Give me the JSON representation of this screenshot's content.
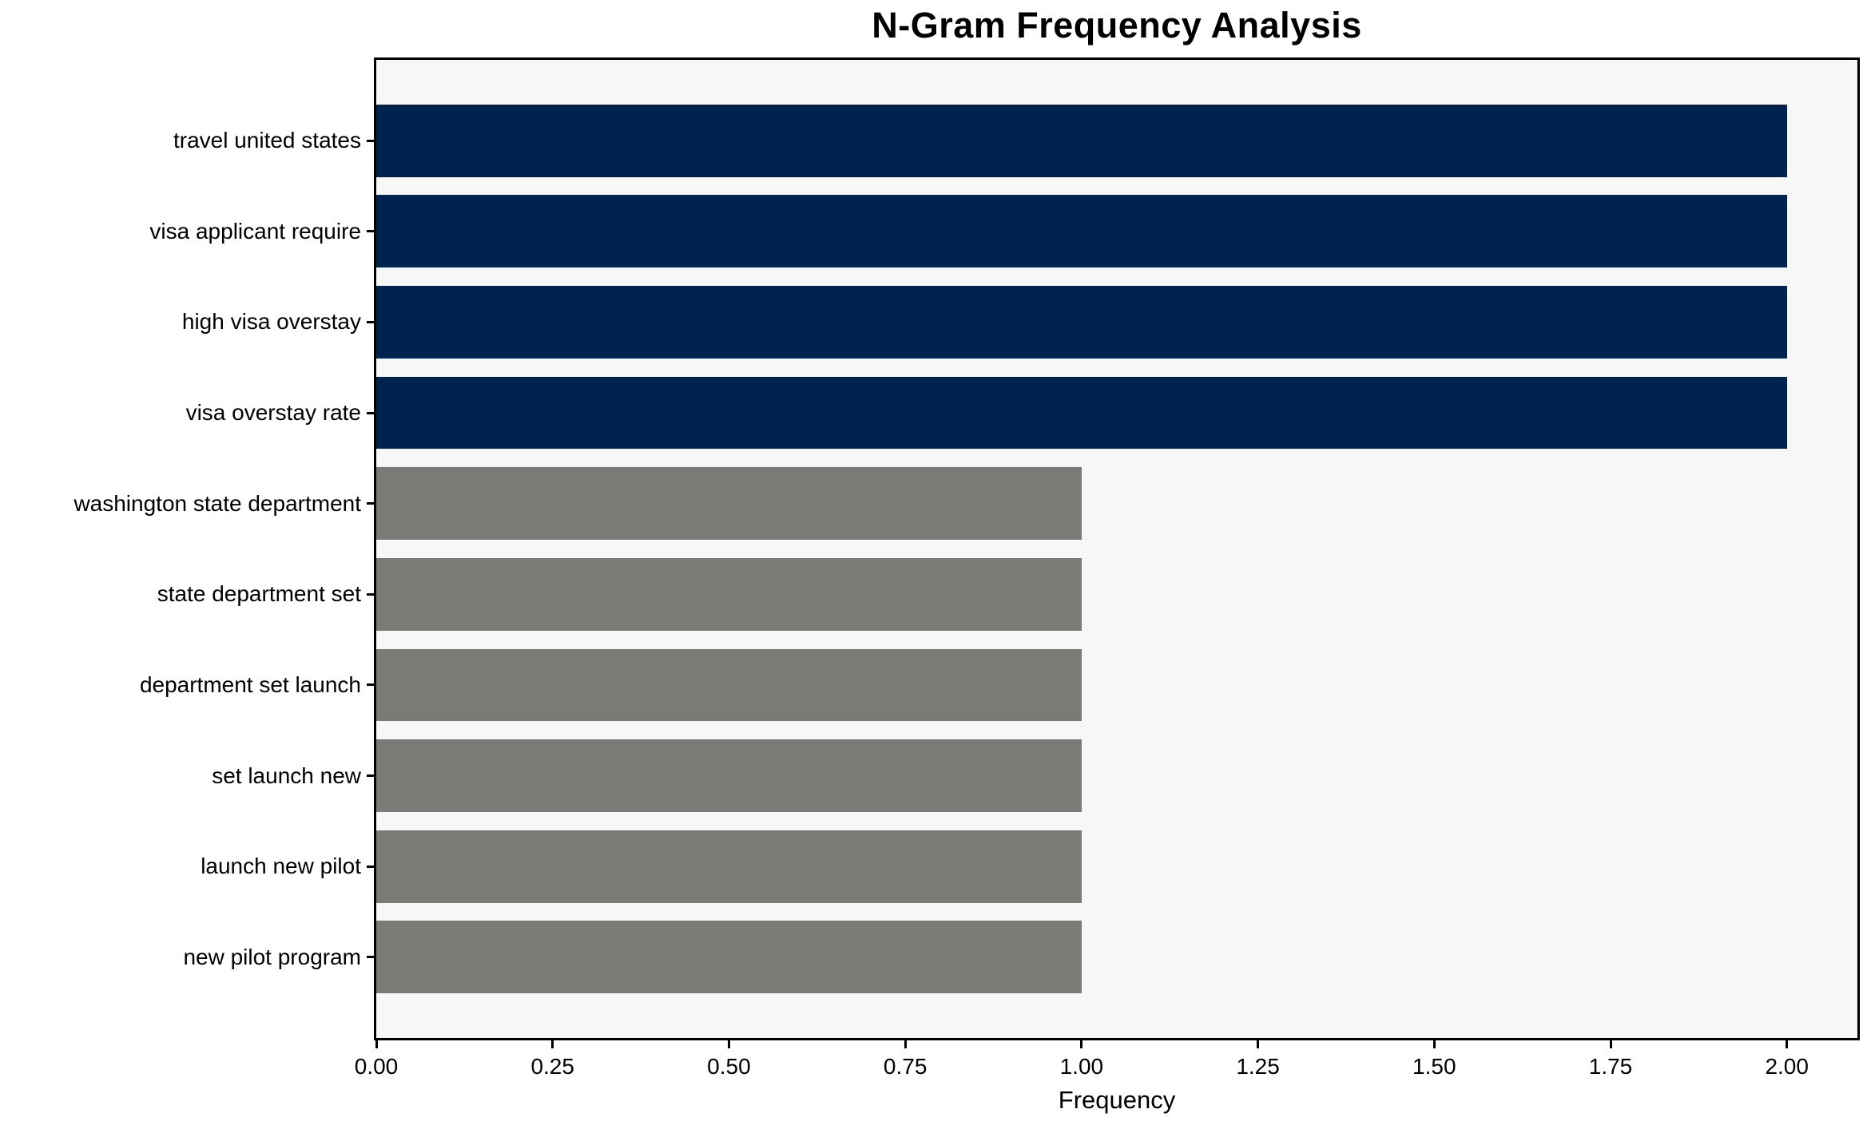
{
  "chart_data": {
    "type": "bar",
    "orientation": "horizontal",
    "title": "N-Gram Frequency Analysis",
    "xlabel": "Frequency",
    "ylabel": "",
    "categories": [
      "travel united states",
      "visa applicant require",
      "high visa overstay",
      "visa overstay rate",
      "washington state department",
      "state department set",
      "department set launch",
      "set launch new",
      "launch new pilot",
      "new pilot program"
    ],
    "values": [
      2,
      2,
      2,
      2,
      1,
      1,
      1,
      1,
      1,
      1
    ],
    "bar_colors": [
      "#00224e",
      "#00224e",
      "#00224e",
      "#00224e",
      "#7a7a77",
      "#7a7a77",
      "#7a7a77",
      "#7a7a77",
      "#7a7a77",
      "#7a7a77"
    ],
    "xlim": [
      0,
      2.1
    ],
    "xtick_values": [
      0,
      0.25,
      0.5,
      0.75,
      1,
      1.25,
      1.5,
      1.75,
      2
    ],
    "xtick_labels": [
      "0.00",
      "0.25",
      "0.50",
      "0.75",
      "1.00",
      "1.25",
      "1.50",
      "1.75",
      "2.00"
    ],
    "grid": false,
    "legend": null,
    "plot_background": "#f7f7f8",
    "figure_background": "#ffffff",
    "spine_color": "#000000"
  }
}
